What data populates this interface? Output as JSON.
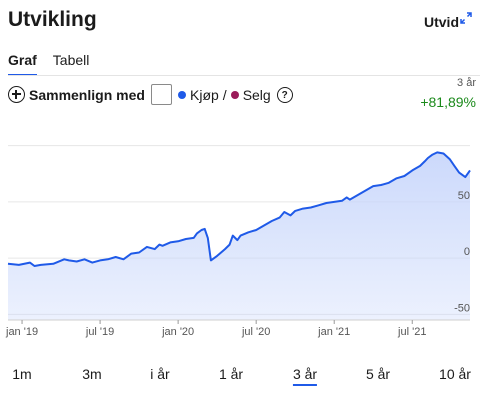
{
  "header": {
    "title": "Utvikling",
    "expand_label": "Utvid"
  },
  "tabs": [
    {
      "label": "Graf",
      "active": true
    },
    {
      "label": "Tabell",
      "active": false
    }
  ],
  "compare": {
    "label": "Sammenlign med",
    "checkbox_checked": false
  },
  "legend": {
    "buy_label": "Kjøp",
    "separator": "/",
    "sell_label": "Selg",
    "help": "?",
    "buy_color": "#1f5ae8",
    "sell_color": "#9b1b5a"
  },
  "summary": {
    "period": "3 år",
    "change": "+81,89%",
    "change_color": "#1b8a1b"
  },
  "chart_data": {
    "type": "area",
    "xlabel": "",
    "ylabel": "",
    "x_ticks": [
      "jan '19",
      "jul '19",
      "jan '20",
      "jul '20",
      "jan '21",
      "jul '21"
    ],
    "x_tick_positions": [
      0.0,
      0.5,
      1.0,
      1.5,
      2.0,
      2.5
    ],
    "y_ticks": [
      50,
      0,
      -50
    ],
    "ylim": [
      -55,
      105
    ],
    "xlim": [
      -0.09,
      2.87
    ],
    "grid": true,
    "line_color": "#1f5ae8",
    "fill_color": "#c9d7fb",
    "series": [
      {
        "x": [
          -0.09,
          -0.02,
          0.05,
          0.08,
          0.12,
          0.2,
          0.27,
          0.3,
          0.35,
          0.4,
          0.45,
          0.5,
          0.55,
          0.6,
          0.65,
          0.7,
          0.75,
          0.8,
          0.85,
          0.88,
          0.9,
          0.95,
          1.0,
          1.05,
          1.1,
          1.12,
          1.15,
          1.17,
          1.19,
          1.21,
          1.25,
          1.3,
          1.33,
          1.35,
          1.38,
          1.4,
          1.45,
          1.5,
          1.55,
          1.6,
          1.65,
          1.68,
          1.72,
          1.75,
          1.8,
          1.85,
          1.9,
          1.95,
          2.0,
          2.05,
          2.08,
          2.1,
          2.15,
          2.2,
          2.25,
          2.3,
          2.35,
          2.4,
          2.45,
          2.5,
          2.55,
          2.58,
          2.6,
          2.63,
          2.66,
          2.7,
          2.74,
          2.77,
          2.8,
          2.84,
          2.87
        ],
        "values": [
          -5,
          -6,
          -4,
          -7,
          -6,
          -5,
          -1,
          -2,
          -3,
          -1,
          -4,
          -2,
          -1,
          1,
          -1,
          4,
          5,
          10,
          8,
          12,
          11,
          14,
          15,
          17,
          18,
          22,
          25,
          26,
          18,
          -2,
          2,
          8,
          12,
          20,
          16,
          20,
          23,
          25,
          29,
          33,
          36,
          41,
          38,
          42,
          44,
          45,
          47,
          49,
          50,
          51,
          54,
          52,
          56,
          60,
          64,
          65,
          67,
          71,
          73,
          78,
          82,
          86,
          89,
          92,
          94,
          93,
          88,
          82,
          76,
          72,
          78
        ]
      }
    ]
  },
  "ranges": [
    {
      "label": "1m",
      "active": false
    },
    {
      "label": "3m",
      "active": false
    },
    {
      "label": "i år",
      "active": false
    },
    {
      "label": "1 år",
      "active": false
    },
    {
      "label": "3 år",
      "active": true
    },
    {
      "label": "5 år",
      "active": false
    },
    {
      "label": "10 år",
      "active": false
    }
  ]
}
